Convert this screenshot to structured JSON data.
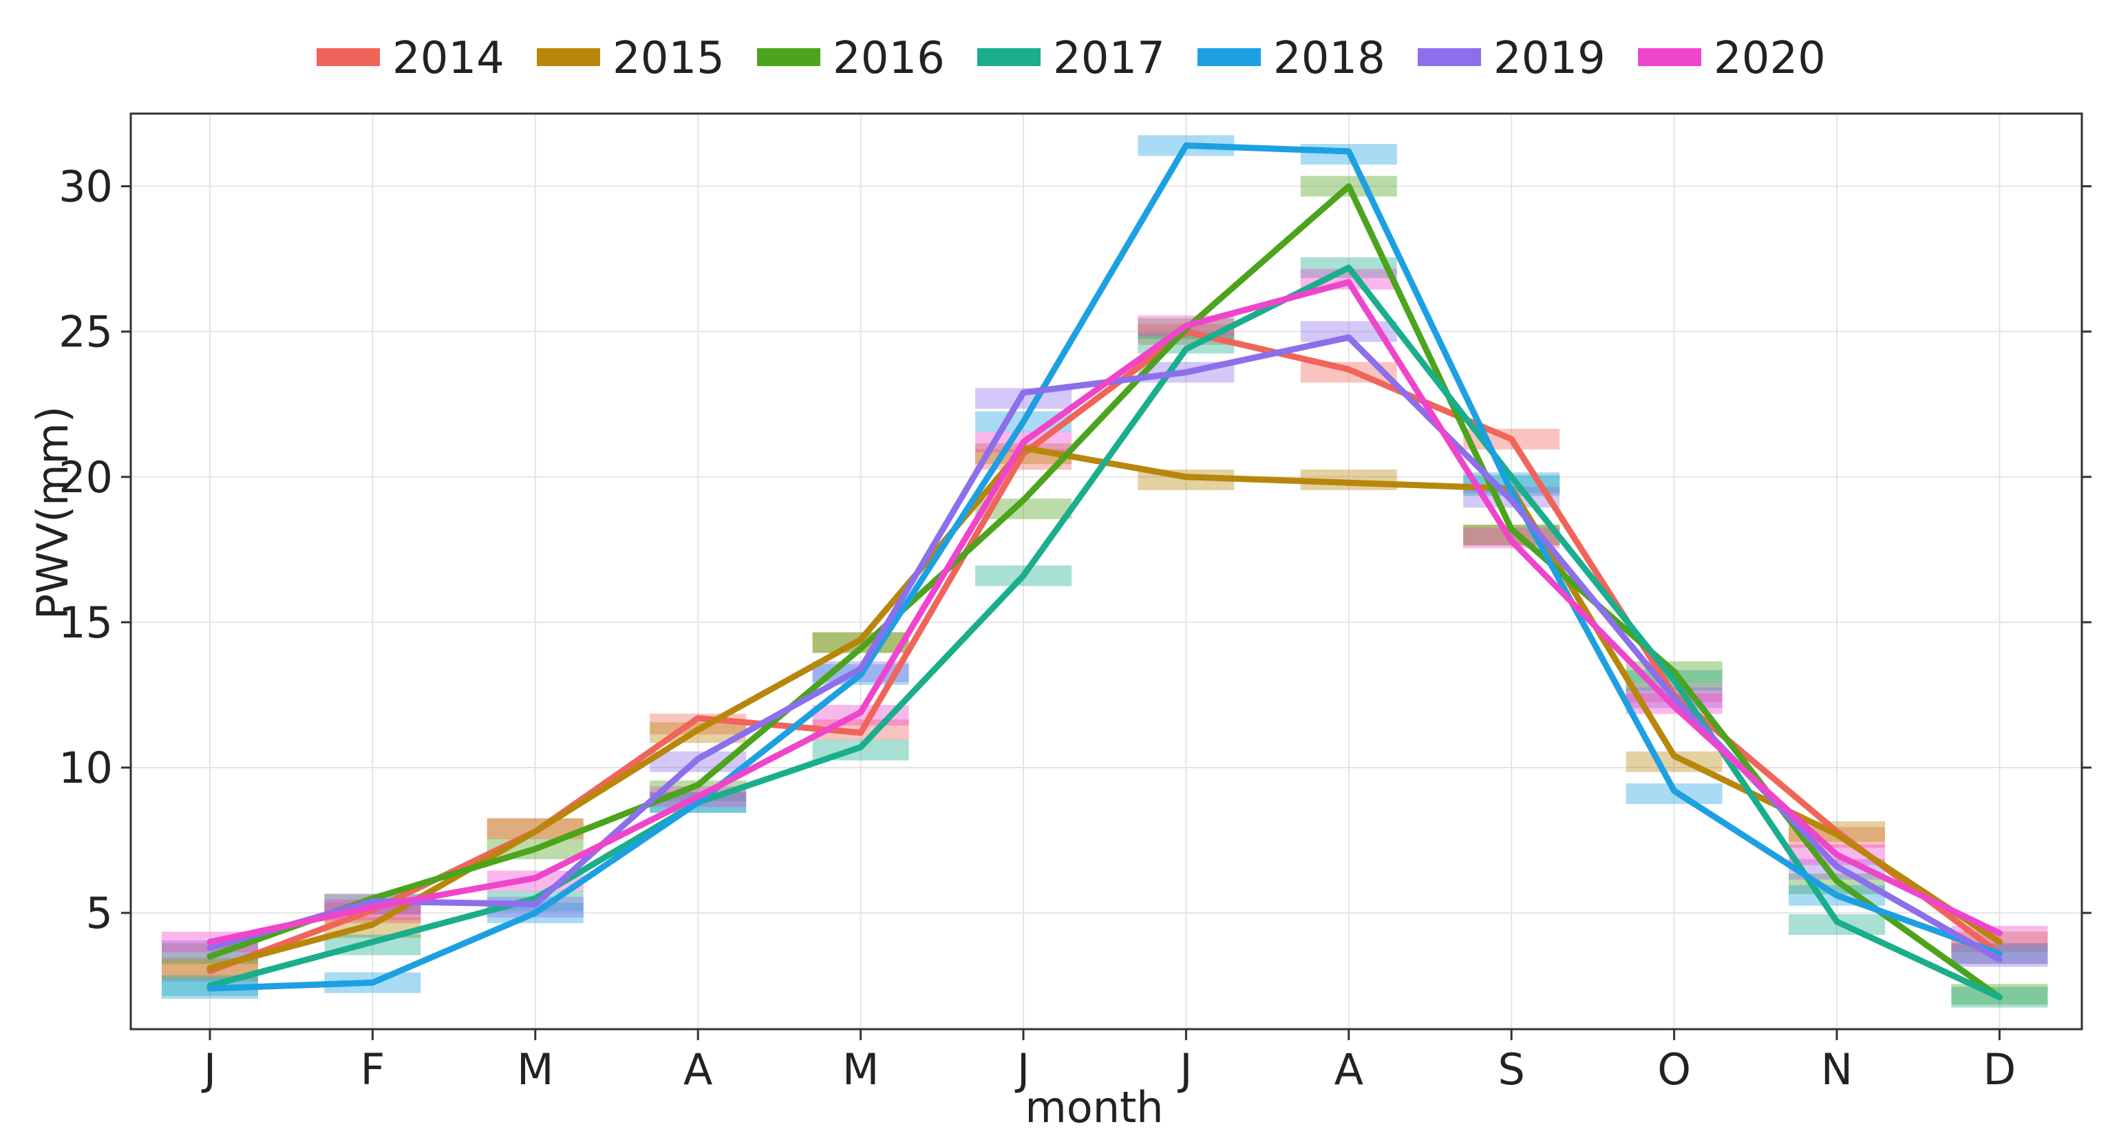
{
  "chart_data": {
    "type": "line",
    "title": "",
    "xlabel": "month",
    "ylabel": "PWV(mm)",
    "categories": [
      "J",
      "F",
      "M",
      "A",
      "M",
      "J",
      "J",
      "A",
      "S",
      "O",
      "N",
      "D"
    ],
    "ylim": [
      1,
      32.5
    ],
    "yticks": [
      5,
      10,
      15,
      20,
      25,
      30
    ],
    "grid": true,
    "legend_position": "top",
    "series": [
      {
        "name": "2014",
        "color": "#F0645A",
        "values": [
          3.0,
          5.1,
          7.8,
          11.7,
          11.2,
          20.8,
          25.0,
          23.7,
          21.3,
          12.5,
          7.8,
          3.6
        ],
        "bands": [
          3.0,
          5.0,
          7.9,
          11.5,
          11.3,
          20.6,
          24.9,
          23.6,
          21.3,
          12.6,
          7.6,
          3.6
        ]
      },
      {
        "name": "2015",
        "color": "#B8860B",
        "values": [
          3.1,
          4.6,
          7.8,
          11.3,
          14.4,
          21.0,
          20.0,
          19.8,
          19.6,
          10.4,
          7.7,
          4.0
        ],
        "bands": [
          3.1,
          4.5,
          7.9,
          11.2,
          14.3,
          20.8,
          19.9,
          19.9,
          18.0,
          10.2,
          7.8,
          4.0
        ]
      },
      {
        "name": "2016",
        "color": "#4CA31C",
        "values": [
          3.5,
          5.5,
          7.2,
          9.4,
          14.1,
          19.2,
          25.1,
          30.0,
          18.2,
          13.3,
          6.1,
          2.1
        ],
        "bands": [
          3.6,
          5.3,
          7.2,
          9.2,
          14.3,
          18.9,
          25.1,
          30.0,
          18.0,
          13.3,
          6.0,
          2.2
        ]
      },
      {
        "name": "2017",
        "color": "#1AAE8C",
        "values": [
          2.5,
          4.0,
          5.5,
          8.8,
          10.7,
          16.6,
          24.4,
          27.2,
          20.0,
          13.0,
          4.7,
          2.1
        ],
        "bands": [
          2.5,
          3.9,
          5.4,
          8.8,
          10.6,
          16.6,
          24.6,
          27.2,
          19.7,
          13.0,
          4.6,
          2.1
        ]
      },
      {
        "name": "2018",
        "color": "#1DA0E2",
        "values": [
          2.4,
          2.6,
          5.0,
          8.8,
          13.2,
          21.9,
          31.4,
          31.2,
          19.5,
          9.2,
          5.6,
          3.6
        ],
        "bands": [
          2.4,
          2.6,
          5.0,
          8.8,
          13.2,
          21.9,
          31.4,
          31.1,
          19.8,
          9.1,
          5.6,
          3.6
        ]
      },
      {
        "name": "2019",
        "color": "#8C6FEA",
        "values": [
          3.8,
          5.4,
          5.3,
          10.3,
          13.4,
          22.9,
          23.6,
          24.8,
          19.2,
          12.4,
          6.6,
          3.4
        ],
        "bands": [
          3.7,
          5.3,
          5.2,
          10.2,
          13.3,
          22.7,
          23.6,
          25.0,
          19.3,
          12.4,
          6.5,
          3.5
        ]
      },
      {
        "name": "2020",
        "color": "#EF45CC",
        "values": [
          4.0,
          5.2,
          6.2,
          9.0,
          11.9,
          21.2,
          25.2,
          26.7,
          17.8,
          12.1,
          7.0,
          4.3
        ],
        "bands": [
          4.0,
          5.1,
          6.1,
          9.0,
          11.8,
          21.2,
          25.2,
          26.8,
          17.9,
          12.2,
          7.0,
          4.2
        ]
      }
    ]
  }
}
